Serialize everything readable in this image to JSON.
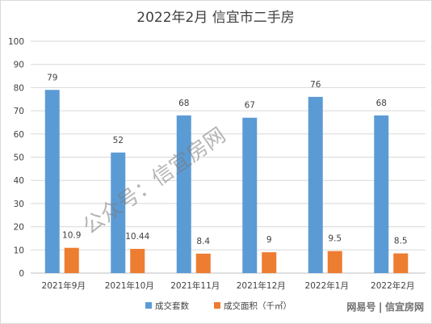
{
  "chart_data": {
    "type": "bar",
    "title": "2022年2月 信宜市二手房",
    "categories": [
      "2021年9月",
      "2021年10月",
      "2021年11月",
      "2021年12月",
      "2022年1月",
      "2022年2月"
    ],
    "series": [
      {
        "name": "成交套数",
        "values": [
          79,
          52,
          68,
          67,
          76,
          68
        ],
        "labels": [
          "79",
          "52",
          "68",
          "67",
          "76",
          "68"
        ],
        "color": "#5b9bd5"
      },
      {
        "name": "成交面积（千㎡）",
        "values": [
          10.9,
          10.44,
          8.4,
          9,
          9.5,
          8.5
        ],
        "labels": [
          "10.9",
          "10.44",
          "8.4",
          "9",
          "9.5",
          "8.5"
        ],
        "color": "#ed7d31"
      }
    ],
    "ylim": [
      0,
      100
    ],
    "yticks": [
      "0",
      "10",
      "20",
      "30",
      "40",
      "50",
      "60",
      "70",
      "80",
      "90",
      "100"
    ],
    "grid": true,
    "legend_position": "bottom"
  },
  "watermarks": {
    "diagonal": "公众号：信宜房网",
    "corner": "网易号 | 信宜房网"
  },
  "colors": {
    "gridline": "#d9d9d9",
    "axis": "#bfbfbf",
    "text": "#404040"
  }
}
